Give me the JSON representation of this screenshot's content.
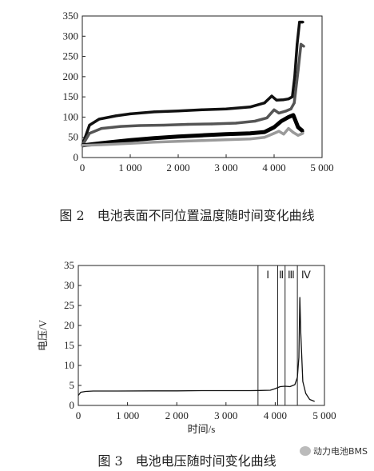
{
  "chart_data": [
    {
      "type": "line",
      "title": "",
      "xlabel": "",
      "ylabel": "",
      "xlim": [
        0,
        5000
      ],
      "ylim": [
        0,
        350
      ],
      "x_ticks": [
        "0",
        "1 000",
        "2 000",
        "3 000",
        "4 000",
        "5 000"
      ],
      "y_ticks": [
        "0",
        "50",
        "100",
        "150",
        "200",
        "250",
        "300",
        "350"
      ],
      "x_tick_values": [
        0,
        1000,
        2000,
        3000,
        4000,
        5000
      ],
      "y_tick_values": [
        0,
        50,
        100,
        150,
        200,
        250,
        300,
        350
      ],
      "series": [
        {
          "color": "#111111",
          "x": [
            0,
            150,
            350,
            700,
            1000,
            1500,
            2000,
            2500,
            3000,
            3500,
            3800,
            3950,
            4050,
            4200,
            4300,
            4380,
            4430,
            4480,
            4530,
            4600
          ],
          "y": [
            30,
            80,
            95,
            103,
            108,
            113,
            115,
            118,
            120,
            125,
            135,
            152,
            142,
            143,
            145,
            150,
            200,
            280,
            335,
            335
          ]
        },
        {
          "color": "#555555",
          "x": [
            0,
            150,
            400,
            800,
            1200,
            1700,
            2200,
            2700,
            3200,
            3600,
            3850,
            4000,
            4100,
            4250,
            4350,
            4420,
            4500,
            4560,
            4620
          ],
          "y": [
            30,
            60,
            72,
            77,
            79,
            80,
            82,
            83,
            85,
            90,
            98,
            118,
            110,
            115,
            120,
            135,
            215,
            280,
            275
          ]
        },
        {
          "color": "#000000",
          "x": [
            0,
            500,
            1000,
            1500,
            2000,
            2500,
            3000,
            3500,
            3800,
            4000,
            4150,
            4300,
            4400,
            4500,
            4600
          ],
          "y": [
            30,
            37,
            43,
            48,
            52,
            55,
            58,
            60,
            63,
            75,
            90,
            100,
            105,
            75,
            65
          ]
        },
        {
          "color": "#9a9a9a",
          "x": [
            0,
            500,
            1000,
            1500,
            2000,
            2500,
            3000,
            3500,
            3800,
            4000,
            4100,
            4200,
            4300,
            4400,
            4500,
            4600
          ],
          "y": [
            30,
            32,
            35,
            38,
            40,
            42,
            44,
            46,
            50,
            60,
            65,
            58,
            72,
            62,
            55,
            60
          ]
        }
      ]
    },
    {
      "type": "line",
      "title": "",
      "xlabel": "时间/s",
      "ylabel": "电压/V",
      "xlim": [
        0,
        5000
      ],
      "ylim": [
        0,
        35
      ],
      "x_ticks": [
        "0",
        "1 000",
        "2 000",
        "3 000",
        "4 000",
        "5 000"
      ],
      "y_ticks": [
        "0",
        "5",
        "10",
        "15",
        "20",
        "25",
        "30",
        "35"
      ],
      "x_tick_values": [
        0,
        1000,
        2000,
        3000,
        4000,
        5000
      ],
      "y_tick_values": [
        0,
        5,
        10,
        15,
        20,
        25,
        30,
        35
      ],
      "series": [
        {
          "color": "#111111",
          "x": [
            0,
            50,
            150,
            300,
            800,
            1500,
            2000,
            2500,
            3000,
            3500,
            3700,
            3900,
            4000,
            4100,
            4200,
            4300,
            4400,
            4450,
            4480,
            4500,
            4520,
            4560,
            4620,
            4700,
            4800
          ],
          "y": [
            2.5,
            3.3,
            3.5,
            3.6,
            3.6,
            3.65,
            3.65,
            3.7,
            3.7,
            3.7,
            3.75,
            3.8,
            4.2,
            4.7,
            4.8,
            4.7,
            5.2,
            7,
            12,
            27,
            18,
            6,
            3,
            1.5,
            1.0
          ]
        }
      ],
      "regions": [
        {
          "label": "Ⅰ",
          "x_start": 3650,
          "x_end": 4050
        },
        {
          "label": "Ⅱ",
          "x_start": 4050,
          "x_end": 4200
        },
        {
          "label": "Ⅲ",
          "x_start": 4200,
          "x_end": 4450
        },
        {
          "label": "Ⅳ",
          "x_start": 4450,
          "x_end": 4800
        }
      ]
    }
  ],
  "captions": {
    "fig2": "图 2　电池表面不同位置温度随时间变化曲线",
    "fig3": "图 3　电池电压随时间变化曲线"
  },
  "watermark": {
    "text": "动力电池BMS",
    "icon": "wechat-icon"
  }
}
